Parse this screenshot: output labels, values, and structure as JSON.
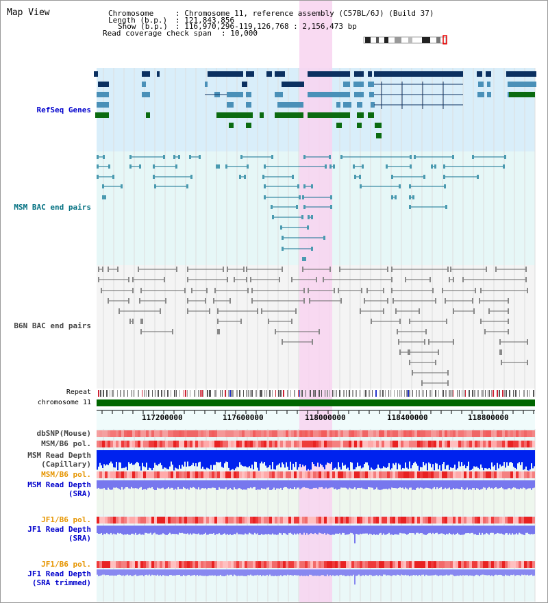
{
  "window": {
    "title": "Map View"
  },
  "info": {
    "chromosome_key": "Chromosome",
    "chromosome_value": ": Chromosome 11, reference assembly (C57BL/6J) (Build 37)",
    "length_key": "Length (b.p.)",
    "length_value": ": 121,843,856",
    "show_key": "Show (b.p.)",
    "show_value": ": 116,970,296-119,126,768 : 2,156,473 bp",
    "coverage_key": "Read coverage check span",
    "coverage_value": ": 10,000"
  },
  "tracks": {
    "refseq": "RefSeq Genes",
    "msm_bac": "MSM BAC end pairs",
    "b6n_bac": "B6N BAC end pairs",
    "repeat": "Repeat",
    "chromosome": "chromosome 11",
    "dbsnp": "dbSNP(Mouse)",
    "msm_b6_pol_1": "MSM/B6 pol.",
    "msm_depth_cap_1": "MSM Read Depth",
    "msm_depth_cap_2": "(Capillary)",
    "msm_b6_pol_2": "MSM/B6 pol.",
    "msm_depth_sra_1": "MSM Read Depth",
    "msm_depth_sra_2": "(SRA)",
    "jf1_b6_pol_1": "JF1/B6 pol.",
    "jf1_depth_sra_1": "JF1 Read Depth",
    "jf1_depth_sra_2": "(SRA)",
    "jf1_b6_pol_2": "JF1/B6 pol.",
    "jf1_depth_trim_1": "JF1 Read Depth",
    "jf1_depth_trim_2": "(SRA trimmed)"
  },
  "axis": {
    "ticks": [
      "117200000",
      "117600000",
      "118000000",
      "118400000",
      "118800000"
    ]
  },
  "colors": {
    "refseq_label": "#0000cc",
    "msm_label": "#006f80",
    "b6n_label": "#444444",
    "gene_dark": "#0b3060",
    "gene_mid": "#4a90b8",
    "gene_green": "#0b6b10",
    "chromosome_bar": "#006600",
    "highlight": "#f8d4f0",
    "depth_capillary": "#0022ee",
    "depth_sra": "#7777ee",
    "orange_label": "#e69500",
    "blue_label": "#0000cc"
  }
}
